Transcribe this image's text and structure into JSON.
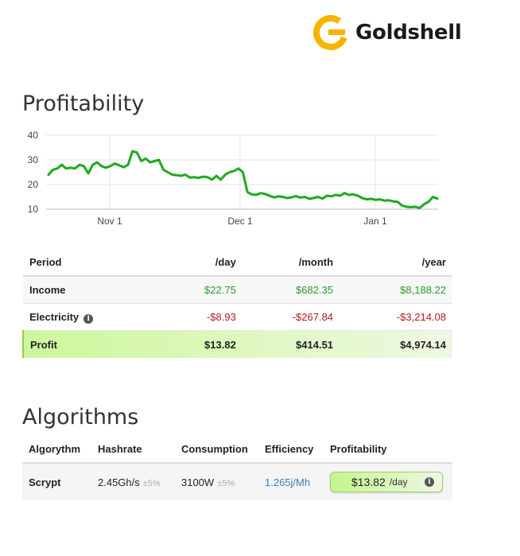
{
  "brand": {
    "name": "Goldshell",
    "logo_icon": "goldshell-g-logo",
    "accent": "#f5b400"
  },
  "profitability": {
    "title": "Profitability",
    "chart_data": {
      "type": "line",
      "title": "",
      "xlabel": "",
      "ylabel": "",
      "x_ticks": [
        "Nov 1",
        "Dec 1",
        "Jan 1"
      ],
      "y_ticks": [
        10,
        20,
        30,
        40
      ],
      "ylim": [
        10,
        40
      ],
      "grid": true,
      "color": "#1eaa1e",
      "series": [
        {
          "values": [
            24,
            26,
            26.5,
            28,
            26.5,
            26.8,
            26.5,
            28,
            27.5,
            24.5,
            28,
            29,
            27.5,
            26.8,
            27.5,
            28.5,
            27.8,
            27,
            28,
            33.5,
            33,
            29.5,
            30.5,
            29,
            29.5,
            30,
            26,
            25,
            24,
            23.8,
            23.5,
            24,
            22.8,
            23,
            22.7,
            23.2,
            23,
            22,
            23.5,
            22,
            24,
            25,
            25.5,
            26.5,
            25,
            17,
            16,
            15.8,
            16.5,
            16.2,
            15.5,
            14.8,
            15.2,
            15,
            14.5,
            14.8,
            15.3,
            14.7,
            15,
            14.2,
            14.5,
            15,
            14.3,
            15.5,
            15.2,
            15.8,
            15.5,
            16.5,
            15.8,
            16,
            15.5,
            14.5,
            14,
            14.2,
            13.8,
            14,
            13.5,
            13.6,
            13.2,
            13,
            11.5,
            11,
            10.8,
            11,
            10.5,
            12,
            13,
            15,
            14.3
          ]
        }
      ]
    },
    "table": {
      "headers": {
        "period": "Period",
        "day": "/day",
        "month": "/month",
        "year": "/year"
      },
      "income": {
        "label": "Income",
        "day": "$22.75",
        "month": "$682.35",
        "year": "$8,188.22"
      },
      "electricity": {
        "label": "Electricity",
        "day": "-$8.93",
        "month": "-$267.84",
        "year": "-$3,214.08"
      },
      "profit": {
        "label": "Profit",
        "day": "$13.82",
        "month": "$414.51",
        "year": "$4,974.14"
      }
    }
  },
  "algorithms": {
    "title": "Algorithms",
    "headers": {
      "algorithm": "Algorythm",
      "hashrate": "Hashrate",
      "consumption": "Consumption",
      "efficiency": "Efficiency",
      "profitability": "Profitability"
    },
    "rows": [
      {
        "algorithm": "Scrypt",
        "hashrate": "2.45Gh/s",
        "hashrate_tol": "±5%",
        "consumption": "3100W",
        "consumption_tol": "±5%",
        "efficiency": "1.265j/Mh",
        "profit_value": "$13.82",
        "profit_unit": "/day"
      }
    ]
  }
}
